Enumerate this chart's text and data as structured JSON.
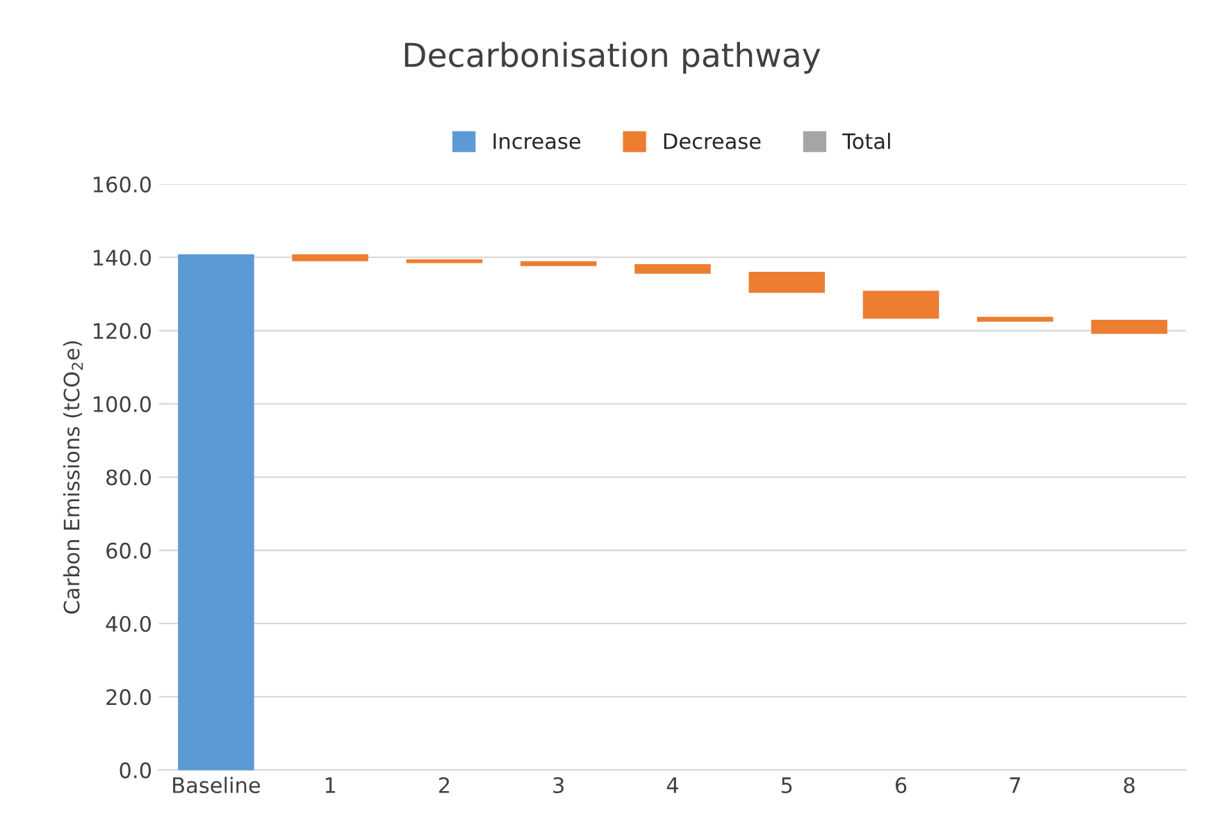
{
  "chart_data": {
    "type": "bar",
    "title": "Decarbonisation pathway",
    "ylabel": "Carbon Emissions (tCO$_{2}$e)",
    "categories": [
      "Baseline",
      "1",
      "2",
      "3",
      "4",
      "5",
      "6",
      "7",
      "8"
    ],
    "series": [
      {
        "name": "Increase",
        "color": "#5b9bd5",
        "values": [
          140.6,
          null,
          null,
          null,
          null,
          null,
          null,
          null,
          null
        ],
        "base": [
          0,
          null,
          null,
          null,
          null,
          null,
          null,
          null,
          null
        ]
      },
      {
        "name": "Decrease",
        "color": "#ed7d31",
        "values": [
          null,
          -1.4,
          -0.5,
          -0.8,
          -2.1,
          -5.2,
          -7.1,
          -0.8,
          -3.3
        ],
        "base": [
          null,
          140.6,
          139.2,
          138.7,
          137.9,
          135.8,
          130.6,
          123.5,
          122.7
        ]
      },
      {
        "name": "Total",
        "color": "#a5a5a5",
        "values": [
          null,
          null,
          null,
          null,
          null,
          null,
          null,
          null,
          null
        ],
        "base": [
          null,
          null,
          null,
          null,
          null,
          null,
          null,
          null,
          null
        ]
      }
    ],
    "ylim": [
      0,
      160
    ],
    "yticks": [
      {
        "value": 0,
        "label": "0.0"
      },
      {
        "value": 20,
        "label": "20.0"
      },
      {
        "value": 40,
        "label": "40.0"
      },
      {
        "value": 60,
        "label": "60.0"
      },
      {
        "value": 80,
        "label": "80.0"
      },
      {
        "value": 100,
        "label": "100.0"
      },
      {
        "value": 120,
        "label": "120.0"
      },
      {
        "value": 140,
        "label": "140.0"
      },
      {
        "value": 160,
        "label": "160.0"
      }
    ],
    "grid": "y",
    "legend": "top"
  }
}
